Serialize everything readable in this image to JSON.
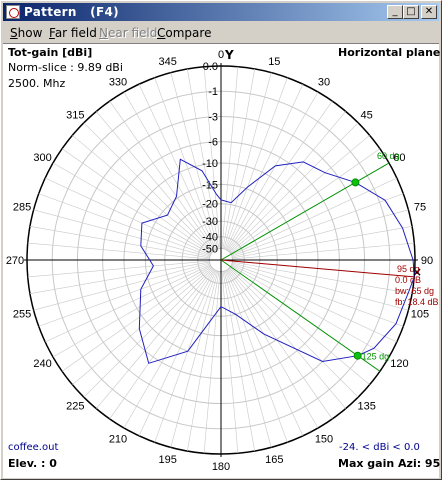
{
  "window": {
    "title": "Pattern   (F4)"
  },
  "titlebar_buttons": {
    "minimize": "_",
    "maximize": "□",
    "close": "✕"
  },
  "menu": {
    "items": [
      {
        "label": "Show",
        "underline": "S",
        "rest": "how",
        "enabled": true
      },
      {
        "label": "Far field",
        "underline": "F",
        "rest": "ar field",
        "enabled": true
      },
      {
        "label": "Near field",
        "underline": "N",
        "rest": "ear field",
        "enabled": false
      },
      {
        "label": "Compare",
        "underline": "C",
        "rest": "ompare",
        "enabled": true
      }
    ]
  },
  "plot": {
    "header_left": "Tot-gain [dBi]",
    "norm_slice": "Norm-slice : 9.89 dBi",
    "frequency": "2500. Mhz",
    "axis_label": "Y",
    "plane": "Horizontal plane",
    "footer_file": "coffee.out",
    "footer_range": "-24. < dBi < 0.0",
    "elevation": "Elev. : 0",
    "max_gain_azi": "Max gain Azi: 95",
    "angle_labels": [
      "0",
      "15",
      "30",
      "45",
      "60",
      "75",
      "90",
      "105",
      "120",
      "135",
      "150",
      "165",
      "180",
      "195",
      "210",
      "225",
      "240",
      "255",
      "270",
      "285",
      "300",
      "315",
      "330",
      "345"
    ],
    "db_labels": [
      "0.0",
      "-1",
      "-3",
      "-6",
      "-10",
      "-15",
      "-20",
      "-30",
      "-40",
      "-50"
    ],
    "beam_labels": {
      "lower_angle": "60 dg",
      "upper_angle": "125 dg",
      "main_angle": "95 dg",
      "main_gain": "0.0 dB",
      "beamwidth": "bw: 65 dg",
      "front_back": "fb: 18.4 dB"
    },
    "colors": {
      "pattern": "#2020c0",
      "beamwidth_lines": "#009000",
      "main_lobe": "#a00000",
      "grid": "#c8c8c8",
      "axes": "#000000"
    }
  }
}
